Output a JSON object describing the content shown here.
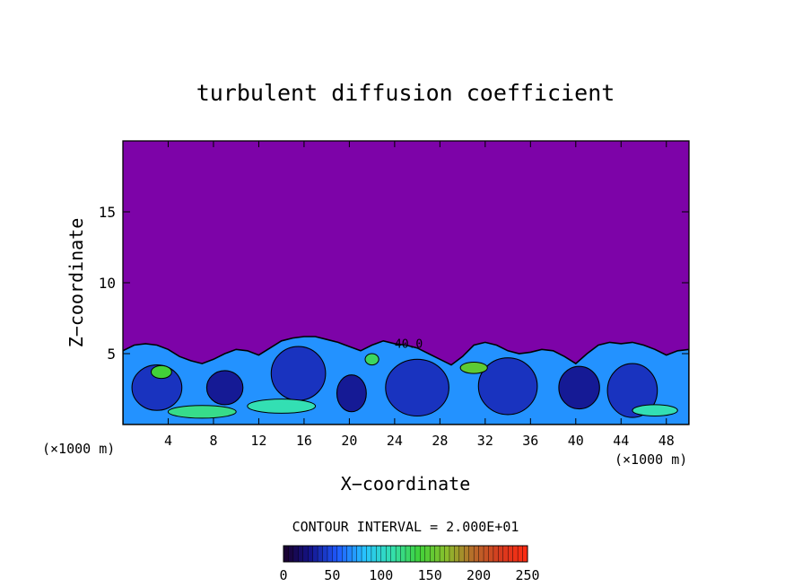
{
  "chart_data": {
    "type": "heatmap",
    "title": "turbulent diffusion coefficient",
    "xlabel": "X−coordinate",
    "ylabel": "Z−coordinate",
    "x_unit_left": "(×1000 m)",
    "x_unit_right": "(×1000 m)",
    "xlim": [
      0,
      50
    ],
    "ylim": [
      0,
      20
    ],
    "xticks": [
      4,
      8,
      12,
      16,
      20,
      24,
      28,
      32,
      36,
      40,
      44,
      48
    ],
    "yticks": [
      5,
      10,
      15
    ],
    "contour_interval_text": "CONTOUR INTERVAL = 2.000E+01",
    "contour_label": "40.0",
    "contour_label_position": [
      24,
      5.4
    ],
    "background_value": 0,
    "mixed_layer_top": [
      [
        0,
        5.2
      ],
      [
        1,
        5.6
      ],
      [
        2,
        5.7
      ],
      [
        3,
        5.6
      ],
      [
        4,
        5.3
      ],
      [
        5,
        4.8
      ],
      [
        6,
        4.5
      ],
      [
        7,
        4.3
      ],
      [
        8,
        4.6
      ],
      [
        9,
        5.0
      ],
      [
        10,
        5.3
      ],
      [
        11,
        5.2
      ],
      [
        12,
        4.9
      ],
      [
        13,
        5.4
      ],
      [
        14,
        5.9
      ],
      [
        15,
        6.1
      ],
      [
        16,
        6.2
      ],
      [
        17,
        6.2
      ],
      [
        18,
        6.0
      ],
      [
        19,
        5.8
      ],
      [
        20,
        5.5
      ],
      [
        21,
        5.2
      ],
      [
        22,
        5.6
      ],
      [
        23,
        5.9
      ],
      [
        24,
        5.7
      ],
      [
        25,
        5.6
      ],
      [
        26,
        5.4
      ],
      [
        27,
        5.0
      ],
      [
        28,
        4.6
      ],
      [
        29,
        4.2
      ],
      [
        30,
        4.8
      ],
      [
        31,
        5.6
      ],
      [
        32,
        5.8
      ],
      [
        33,
        5.6
      ],
      [
        34,
        5.2
      ],
      [
        35,
        5.0
      ],
      [
        36,
        5.1
      ],
      [
        37,
        5.3
      ],
      [
        38,
        5.2
      ],
      [
        39,
        4.8
      ],
      [
        40,
        4.3
      ],
      [
        41,
        5.0
      ],
      [
        42,
        5.6
      ],
      [
        43,
        5.8
      ],
      [
        44,
        5.7
      ],
      [
        45,
        5.8
      ],
      [
        46,
        5.6
      ],
      [
        47,
        5.3
      ],
      [
        48,
        4.9
      ],
      [
        49,
        5.2
      ],
      [
        50,
        5.3
      ]
    ],
    "eddies": [
      {
        "x": 3.0,
        "z": 2.6,
        "rx": 2.2,
        "rz": 1.6,
        "value": 40
      },
      {
        "x": 9.0,
        "z": 2.6,
        "rx": 1.6,
        "rz": 1.2,
        "value": 30
      },
      {
        "x": 15.5,
        "z": 3.6,
        "rx": 2.4,
        "rz": 1.9,
        "value": 40
      },
      {
        "x": 20.2,
        "z": 2.2,
        "rx": 1.3,
        "rz": 1.3,
        "value": 30
      },
      {
        "x": 26.0,
        "z": 2.6,
        "rx": 2.8,
        "rz": 2.0,
        "value": 40
      },
      {
        "x": 34.0,
        "z": 2.7,
        "rx": 2.6,
        "rz": 2.0,
        "value": 40
      },
      {
        "x": 40.3,
        "z": 2.6,
        "rx": 1.8,
        "rz": 1.5,
        "value": 30
      },
      {
        "x": 45.0,
        "z": 2.4,
        "rx": 2.2,
        "rz": 1.9,
        "value": 40
      }
    ],
    "high_streaks": [
      {
        "x": 7.0,
        "z": 0.9,
        "rx": 3.0,
        "rz": 0.45,
        "value": 120
      },
      {
        "x": 14.0,
        "z": 1.3,
        "rx": 3.0,
        "rz": 0.5,
        "value": 110
      },
      {
        "x": 3.4,
        "z": 3.7,
        "rx": 0.9,
        "rz": 0.45,
        "value": 140
      },
      {
        "x": 31.0,
        "z": 4.0,
        "rx": 1.2,
        "rz": 0.4,
        "value": 150
      },
      {
        "x": 22.0,
        "z": 4.6,
        "rx": 0.6,
        "rz": 0.4,
        "value": 130
      },
      {
        "x": 47.0,
        "z": 1.0,
        "rx": 2.0,
        "rz": 0.4,
        "value": 110
      }
    ],
    "colorbar": {
      "min": 0,
      "max": 250,
      "ticks": [
        0,
        50,
        100,
        150,
        200,
        250
      ],
      "stops": [
        "#1a002a",
        "#14148c",
        "#1f5bff",
        "#27c4ff",
        "#33e0b0",
        "#3fd23a",
        "#8abf2c",
        "#b86a2a",
        "#d63a1e",
        "#ff2b12"
      ]
    },
    "colors": {
      "background": "#7d03a8",
      "frame": "#000000"
    }
  }
}
